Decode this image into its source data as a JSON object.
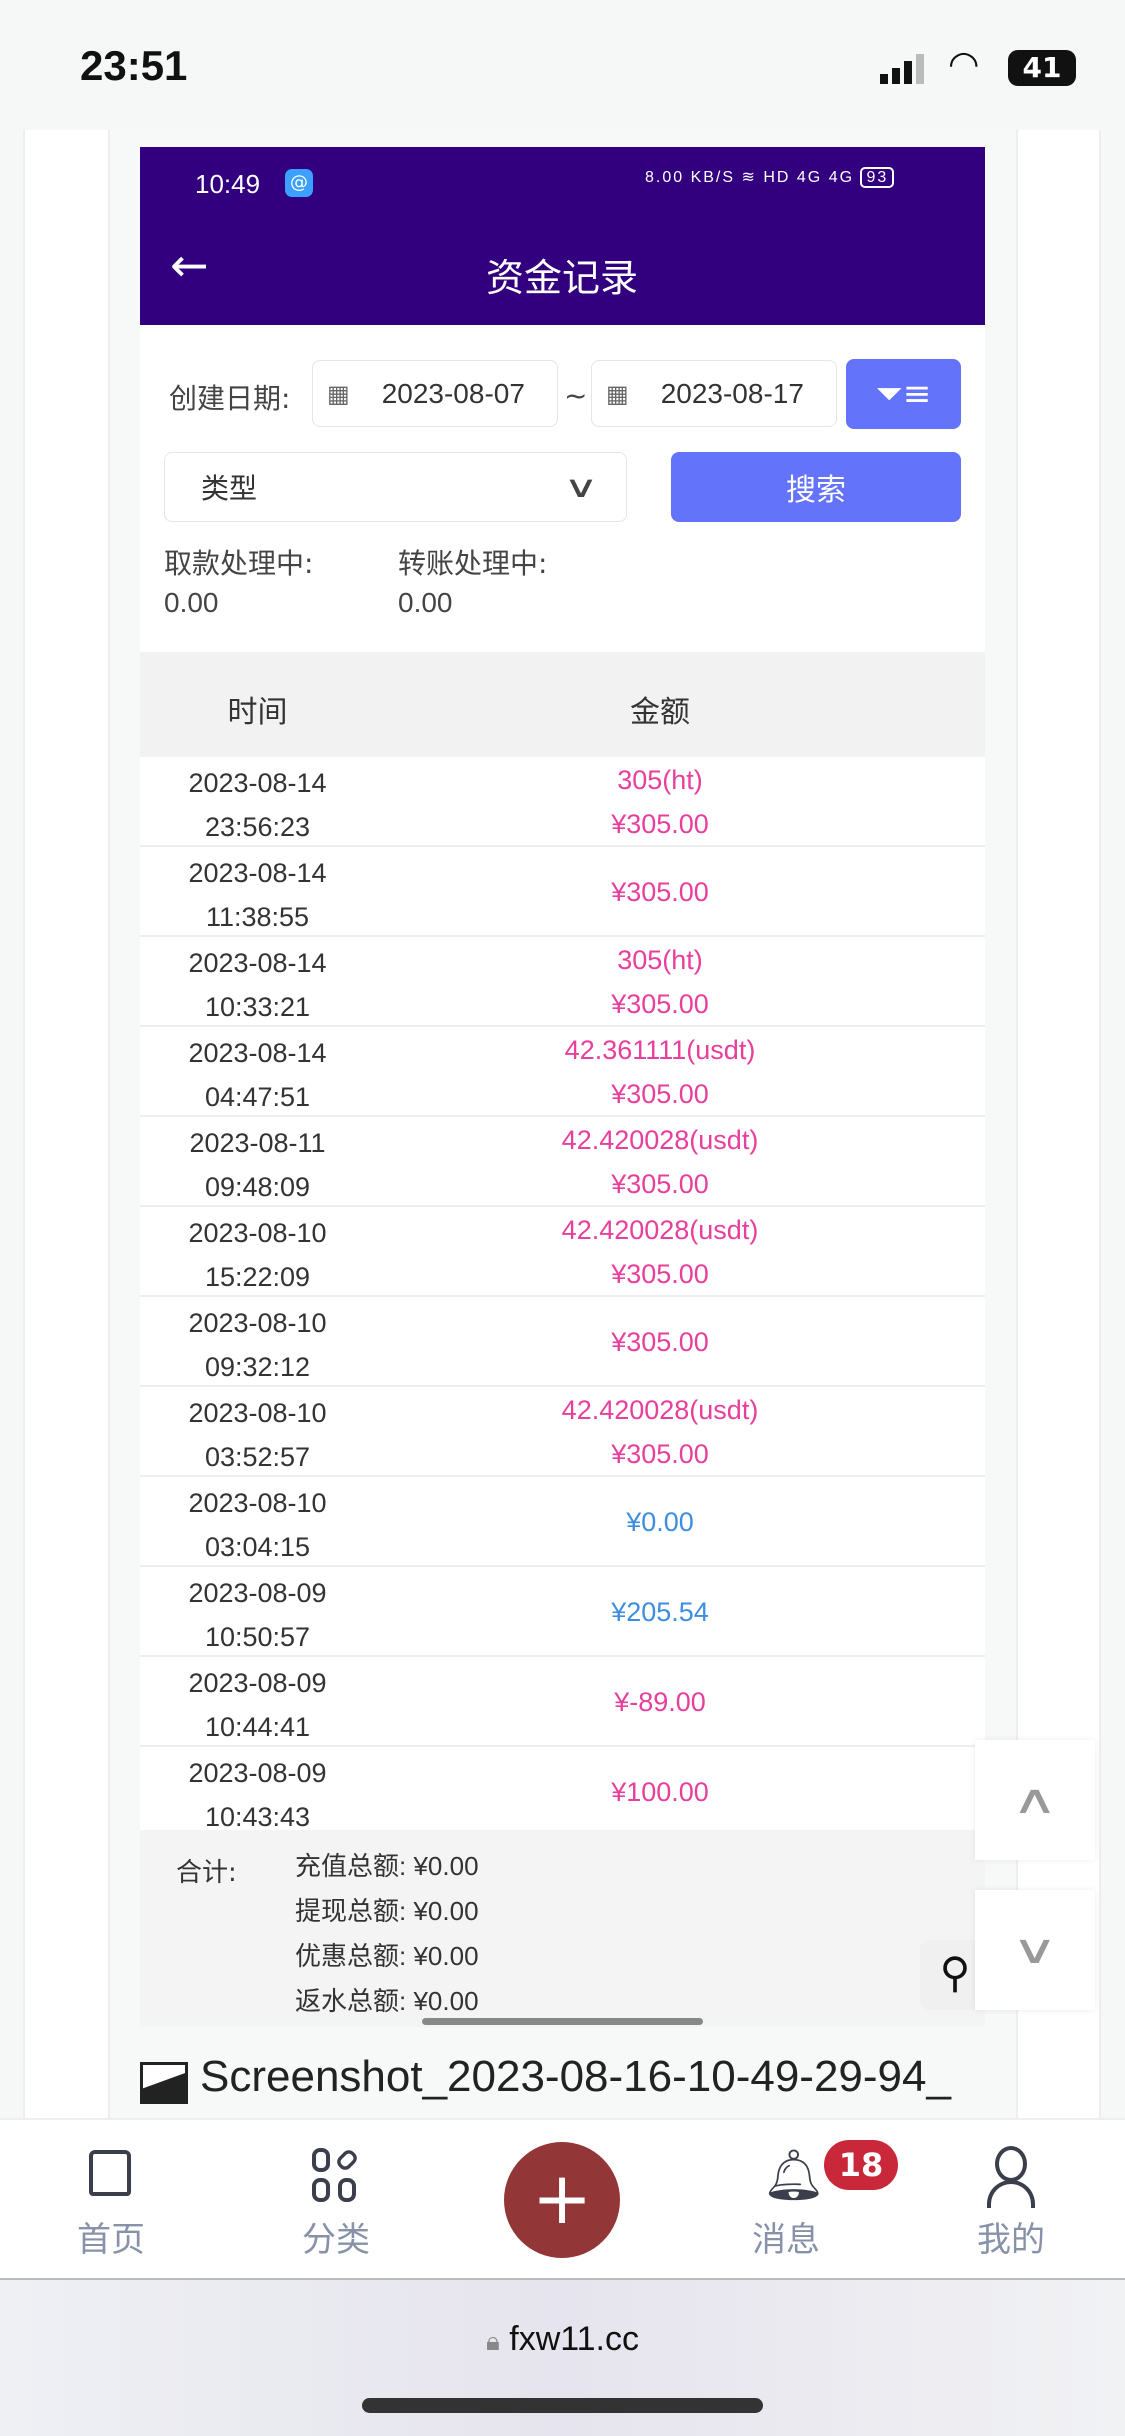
{
  "ios_status": {
    "time": "23:51",
    "battery": "41"
  },
  "inner_status": {
    "time": "10:49",
    "speed": "8.00 KB/S",
    "icons": "HD 4G 4G",
    "battery": "93"
  },
  "header": {
    "title": "资金记录"
  },
  "filter": {
    "date_label": "创建日期:",
    "start_date": "2023-08-07",
    "separator": "~",
    "end_date": "2023-08-17",
    "type_placeholder": "类型",
    "search_label": "搜索"
  },
  "pending": {
    "withdraw_label": "取款处理中:",
    "withdraw_value": "0.00",
    "transfer_label": "转账处理中:",
    "transfer_value": "0.00"
  },
  "table": {
    "headers": [
      "时间",
      "金额"
    ],
    "rows": [
      {
        "date": "2023-08-14",
        "time": "23:56:23",
        "sub": "305(ht)",
        "amount": "¥305.00",
        "color": "#e83e9c"
      },
      {
        "date": "2023-08-14",
        "time": "11:38:55",
        "sub": "",
        "amount": "¥305.00",
        "color": "#e83e9c"
      },
      {
        "date": "2023-08-14",
        "time": "10:33:21",
        "sub": "305(ht)",
        "amount": "¥305.00",
        "color": "#e83e9c"
      },
      {
        "date": "2023-08-14",
        "time": "04:47:51",
        "sub": "42.361111(usdt)",
        "amount": "¥305.00",
        "color": "#e83e9c"
      },
      {
        "date": "2023-08-11",
        "time": "09:48:09",
        "sub": "42.420028(usdt)",
        "amount": "¥305.00",
        "color": "#e83e9c"
      },
      {
        "date": "2023-08-10",
        "time": "15:22:09",
        "sub": "42.420028(usdt)",
        "amount": "¥305.00",
        "color": "#e83e9c"
      },
      {
        "date": "2023-08-10",
        "time": "09:32:12",
        "sub": "",
        "amount": "¥305.00",
        "color": "#e83e9c"
      },
      {
        "date": "2023-08-10",
        "time": "03:52:57",
        "sub": "42.420028(usdt)",
        "amount": "¥305.00",
        "color": "#e83e9c"
      },
      {
        "date": "2023-08-10",
        "time": "03:04:15",
        "sub": "",
        "amount": "¥0.00",
        "color": "#3d8ee0"
      },
      {
        "date": "2023-08-09",
        "time": "10:50:57",
        "sub": "",
        "amount": "¥205.54",
        "color": "#3d8ee0"
      },
      {
        "date": "2023-08-09",
        "time": "10:44:41",
        "sub": "",
        "amount": "¥-89.00",
        "color": "#e83e9c"
      },
      {
        "date": "2023-08-09",
        "time": "10:43:43",
        "sub": "",
        "amount": "¥100.00",
        "color": "#e83e9c"
      }
    ]
  },
  "summary": {
    "label": "合计:",
    "items": [
      {
        "label": "充值总额:",
        "value": "¥0.00"
      },
      {
        "label": "提现总额:",
        "value": "¥0.00"
      },
      {
        "label": "优惠总额:",
        "value": "¥0.00"
      },
      {
        "label": "返水总额:",
        "value": "¥0.00"
      }
    ]
  },
  "attachment": {
    "filename": "Screenshot_2023-08-16-10-49-29-94_"
  },
  "nav": {
    "items": [
      {
        "label": "首页",
        "icon": "home-icon"
      },
      {
        "label": "分类",
        "icon": "category-icon"
      },
      {
        "label": "",
        "icon": "plus-icon"
      },
      {
        "label": "消息",
        "icon": "bell-icon",
        "badge": "18"
      },
      {
        "label": "我的",
        "icon": "user-icon"
      }
    ]
  },
  "browser": {
    "url": "fxw11.cc"
  },
  "colors": {
    "header": "#32007f",
    "button": "#6373fa",
    "pink": "#e83e9c",
    "blue": "#3d8ee0",
    "plus": "#923637",
    "badge": "#c9283a"
  }
}
